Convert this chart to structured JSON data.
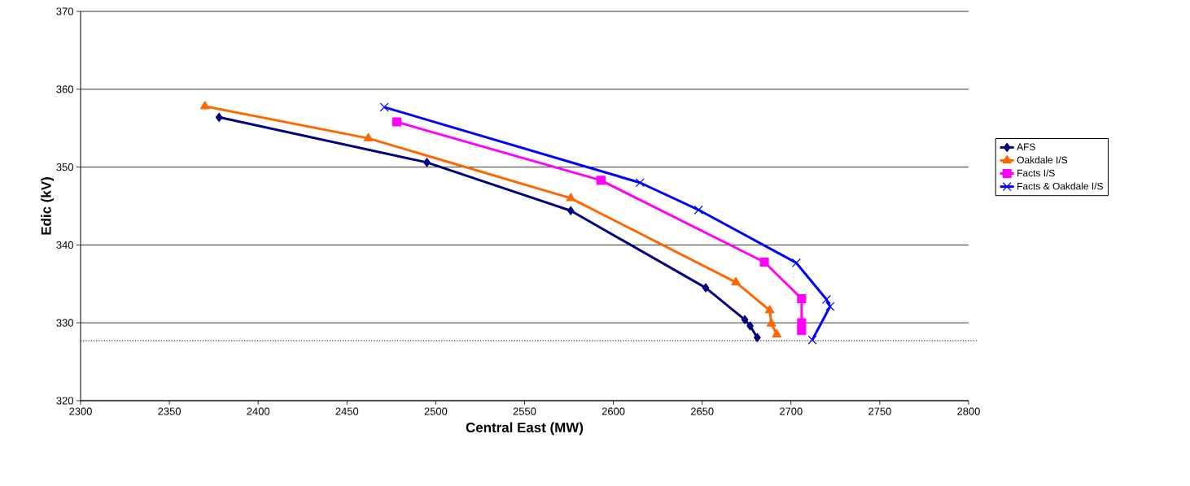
{
  "chart_data": {
    "type": "line",
    "xlabel": "Central East (MW)",
    "ylabel": "Edic (kV)",
    "xlim": [
      2300,
      2800
    ],
    "xticks": [
      2300,
      2350,
      2400,
      2450,
      2500,
      2550,
      2600,
      2650,
      2700,
      2750,
      2800
    ],
    "ylim": [
      320,
      370
    ],
    "yticks": [
      320,
      330,
      340,
      350,
      360,
      370
    ],
    "grid": "y",
    "legend": "right",
    "line_style": "solid",
    "ref_lines": [
      {
        "axis": "y",
        "value": 327.7,
        "color": "#000000",
        "line_style": "dotted"
      }
    ],
    "series": [
      {
        "name": "AFS",
        "color": "#000080",
        "marker": "diamond",
        "x": [
          2378,
          2495,
          2576,
          2652,
          2674,
          2677,
          2681
        ],
        "values": [
          356.4,
          350.6,
          344.4,
          334.5,
          330.4,
          329.6,
          328.1
        ]
      },
      {
        "name": "Oakdale I/S",
        "color": "#ff6600",
        "marker": "triangle",
        "x": [
          2370,
          2462,
          2576,
          2669,
          2688,
          2689,
          2692
        ],
        "values": [
          357.8,
          353.7,
          346.0,
          335.2,
          331.6,
          329.9,
          328.5
        ]
      },
      {
        "name": "Facts I/S",
        "color": "#ff00ff",
        "marker": "square",
        "x": [
          2478,
          2593,
          2685,
          2706,
          2706,
          2706
        ],
        "values": [
          355.8,
          348.3,
          337.8,
          333.1,
          330.0,
          329.0
        ]
      },
      {
        "name": "Facts & Oakdale I/S",
        "color": "#0000ff",
        "marker": "cross",
        "x": [
          2471,
          2615,
          2648,
          2703,
          2720,
          2722,
          2712
        ],
        "values": [
          357.7,
          348.0,
          344.5,
          337.7,
          333.0,
          332.1,
          327.8
        ]
      }
    ]
  }
}
